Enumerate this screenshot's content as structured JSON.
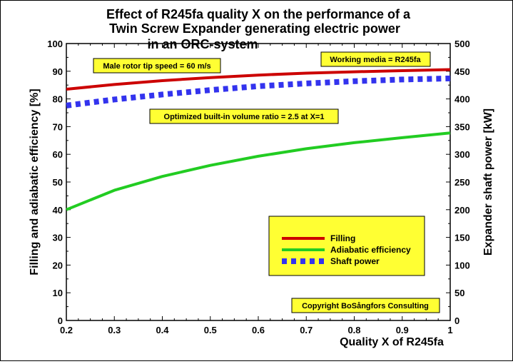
{
  "chart_data": {
    "type": "line",
    "title": [
      "Effect of R245fa quality X on the performance of a",
      "Twin Screw Expander generating electric power",
      "in an ORC-system"
    ],
    "xlabel": "Quality X of R245fa",
    "ylabel_left": "Filling and adiabatic efficiency  [%]",
    "ylabel_right": "Expander shaft power [kW]",
    "xlim": [
      0.2,
      1.0
    ],
    "ylim_left": [
      0,
      100
    ],
    "ylim_right": [
      0,
      500
    ],
    "x_ticks": [
      "0.2",
      "0.3",
      "0.4",
      "0.5",
      "0.6",
      "0.7",
      "0.8",
      "0.9",
      "1"
    ],
    "y_left_ticks": [
      "0",
      "10",
      "20",
      "30",
      "40",
      "50",
      "60",
      "70",
      "80",
      "90",
      "100"
    ],
    "y_right_ticks": [
      "0",
      "50",
      "100",
      "150",
      "200",
      "250",
      "300",
      "350",
      "400",
      "450",
      "500"
    ],
    "grid": false,
    "legend_placement": "bottom-right",
    "series": [
      {
        "name": "Filling",
        "axis": "left",
        "color": "#cc0000",
        "style": "solid",
        "x": [
          0.2,
          0.3,
          0.4,
          0.5,
          0.6,
          0.7,
          0.8,
          0.9,
          1.0
        ],
        "values": [
          83.5,
          85.2,
          86.6,
          87.7,
          88.6,
          89.3,
          89.8,
          90.2,
          90.6
        ]
      },
      {
        "name": "Adiabatic efficiency",
        "axis": "left",
        "color": "#22cc22",
        "style": "solid",
        "x": [
          0.2,
          0.3,
          0.4,
          0.5,
          0.6,
          0.7,
          0.8,
          0.9,
          1.0
        ],
        "values": [
          40.0,
          47.0,
          52.0,
          56.0,
          59.3,
          62.0,
          64.2,
          66.0,
          67.7
        ]
      },
      {
        "name": "Shaft power",
        "axis": "right",
        "color": "#3333ee",
        "style": "dotted",
        "x": [
          0.2,
          0.3,
          0.4,
          0.5,
          0.6,
          0.7,
          0.8,
          0.9,
          1.0
        ],
        "values": [
          388,
          399,
          408,
          416,
          423,
          428,
          432,
          435,
          437
        ]
      }
    ],
    "annotations": [
      "Male rotor tip speed = 60 m/s",
      "Working media = R245fa",
      "Optimized built-in volume ratio = 2.5 at X=1",
      "Copyright BoSångfors Consulting"
    ]
  }
}
